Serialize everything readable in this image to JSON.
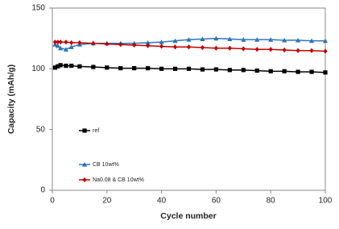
{
  "chart_data": {
    "type": "line",
    "x_label": "Cycle number",
    "y_label": "Capacity (mAh/g)",
    "x": [
      1,
      2,
      3,
      5,
      7,
      10,
      15,
      20,
      25,
      30,
      35,
      40,
      45,
      50,
      55,
      60,
      65,
      70,
      75,
      80,
      85,
      90,
      95,
      100
    ],
    "series": [
      {
        "name": "ref",
        "color": "#000000",
        "marker": "square",
        "values": [
          101,
          102,
          103,
          102.5,
          102.5,
          102,
          101.5,
          101,
          100.5,
          100.5,
          100.5,
          100,
          100,
          100,
          99.5,
          99.5,
          99,
          99,
          98.5,
          98,
          98,
          97.5,
          97.5,
          97
        ]
      },
      {
        "name": "CB 10wt%",
        "color": "#2e75b6",
        "marker": "triangle",
        "values": [
          120,
          119,
          117,
          116,
          118,
          120,
          121,
          121,
          121,
          121,
          121.5,
          122,
          123,
          124,
          124.5,
          125,
          124.5,
          124,
          124,
          124,
          123.5,
          123.5,
          123,
          123
        ]
      },
      {
        "name": "Na0.08 & CB 10wt%",
        "color": "#c00000",
        "marker": "diamond",
        "values": [
          122,
          122,
          122,
          122,
          121.5,
          121.5,
          121,
          120.5,
          120,
          119.5,
          119,
          118.5,
          118,
          118,
          117.5,
          117,
          117,
          116.5,
          116,
          116,
          115.5,
          115,
          115,
          114.5
        ]
      }
    ],
    "xlim": [
      0,
      100
    ],
    "xticks": [
      0,
      20,
      40,
      60,
      80,
      100
    ],
    "ylim": [
      0,
      150
    ],
    "yticks": [
      0,
      50,
      100,
      150
    ],
    "legend": "lower left"
  }
}
